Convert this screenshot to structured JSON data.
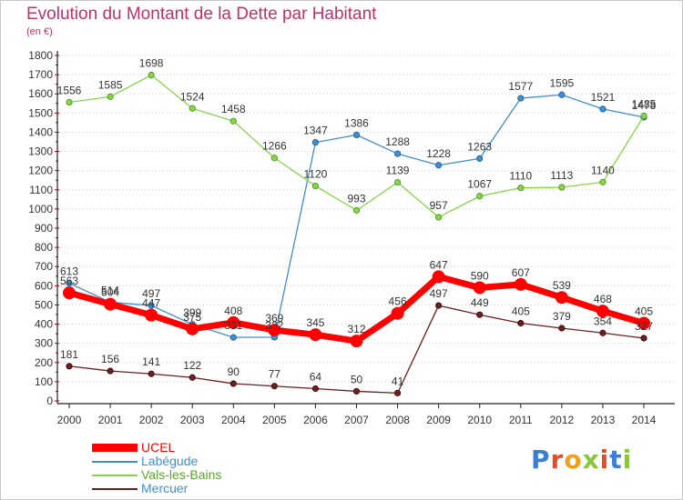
{
  "title": "Evolution du Montant de la Dette par Habitant",
  "subtitle": "(en €)",
  "brand": {
    "text": "Proxiti",
    "letter_colors": [
      "#3a7fd5",
      "#e04e2a",
      "#f0a020",
      "#8cc63f",
      "#e04e2a",
      "#3a7fd5",
      "#8cc63f"
    ]
  },
  "chart_data": {
    "type": "line",
    "title": "Evolution du Montant de la Dette par Habitant",
    "ylabel": "(en €)",
    "xlabel": "",
    "x": [
      "2000",
      "2001",
      "2002",
      "2003",
      "2004",
      "2005",
      "2006",
      "2007",
      "2008",
      "2009",
      "2010",
      "2011",
      "2012",
      "2013",
      "2014"
    ],
    "y_ticks": [
      0,
      100,
      200,
      300,
      400,
      500,
      600,
      700,
      800,
      900,
      1000,
      1100,
      1200,
      1300,
      1400,
      1500,
      1600,
      1700,
      1800
    ],
    "ylim": [
      0,
      1800
    ],
    "grid": "horizontal dotted",
    "legend_position": "bottom-left",
    "series": [
      {
        "name": "UCEL",
        "color": "#ff0000",
        "values": [
          563,
          504,
          447,
          375,
          408,
          369,
          345,
          312,
          456,
          647,
          590,
          607,
          539,
          468,
          405
        ]
      },
      {
        "name": "Labégude",
        "color": "#3f8fd0",
        "values": [
          613,
          514,
          497,
          399,
          331,
          332,
          1347,
          1386,
          1288,
          1228,
          1263,
          1577,
          1595,
          1521,
          1478
        ]
      },
      {
        "name": "Vals-les-Bains",
        "color": "#86d44a",
        "values": [
          1556,
          1585,
          1698,
          1524,
          1458,
          1266,
          1120,
          993,
          1139,
          957,
          1067,
          1110,
          1113,
          1140,
          1485
        ]
      },
      {
        "name": "Mercuer",
        "color": "#6b1e1e",
        "values": [
          181,
          156,
          141,
          122,
          90,
          77,
          64,
          50,
          41,
          497,
          449,
          405,
          379,
          354,
          327
        ]
      }
    ]
  }
}
